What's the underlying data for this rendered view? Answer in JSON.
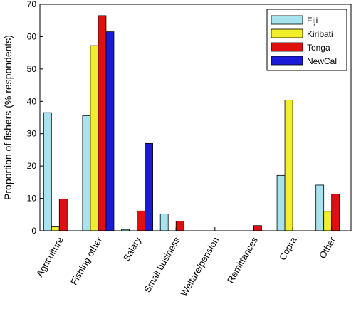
{
  "chart_data": {
    "type": "bar",
    "title": "",
    "xlabel": "",
    "ylabel": "Proportion of fishers (% respondents)",
    "ylim": [
      0,
      70
    ],
    "yticks": [
      0,
      10,
      20,
      30,
      40,
      50,
      60,
      70
    ],
    "grid": false,
    "legend_position": "top-right",
    "categories": [
      "Agriculture",
      "Fishing other",
      "Salary",
      "Small business",
      "Welfare/pension",
      "Remittances",
      "Copra",
      "Other"
    ],
    "series": [
      {
        "name": "Fiji",
        "color": "#a6e3ee",
        "values": [
          36.5,
          35.6,
          0.4,
          5.2,
          0,
          0,
          17.1,
          14.1
        ]
      },
      {
        "name": "Kiribati",
        "color": "#f2ee2a",
        "values": [
          1.2,
          57.2,
          0,
          0,
          0,
          0,
          40.4,
          6.0
        ]
      },
      {
        "name": "Tonga",
        "color": "#e01010",
        "values": [
          9.8,
          66.5,
          6.1,
          3.0,
          0,
          1.6,
          0,
          11.3
        ]
      },
      {
        "name": "NewCal",
        "color": "#1a1ad8",
        "values": [
          0,
          61.5,
          27.0,
          0,
          0,
          0,
          0,
          0
        ]
      }
    ]
  }
}
